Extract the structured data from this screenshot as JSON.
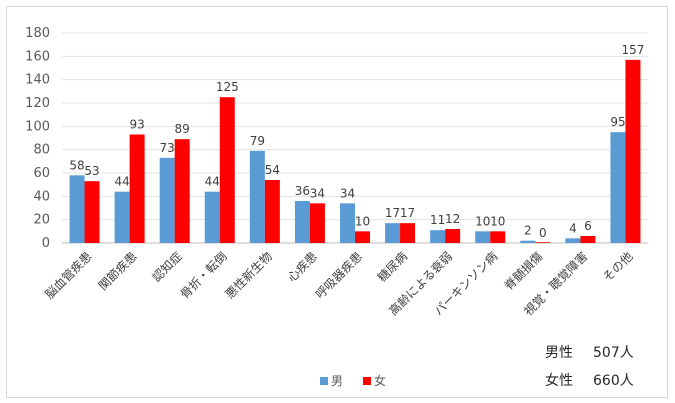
{
  "chart_data": {
    "type": "bar",
    "categories": [
      "脳血管疾患",
      "関節疾患",
      "認知症",
      "骨折・転倒",
      "悪性新生物",
      "心疾患",
      "呼吸器疾患",
      "糖尿病",
      "高齢による衰弱",
      "パーキンソン病",
      "脊髄損傷",
      "視覚・聴覚障害",
      "その他"
    ],
    "series": [
      {
        "name": "男",
        "values": [
          58,
          44,
          73,
          44,
          79,
          36,
          34,
          17,
          11,
          10,
          2,
          4,
          95
        ],
        "color": "#5b9bd5"
      },
      {
        "name": "女",
        "values": [
          53,
          93,
          89,
          125,
          54,
          34,
          10,
          17,
          12,
          10,
          0,
          6,
          157
        ],
        "color": "#ff0000"
      }
    ],
    "ylim": [
      0,
      180
    ],
    "yticks": [
      0,
      20,
      40,
      60,
      80,
      100,
      120,
      140,
      160,
      180
    ],
    "grid": true,
    "legend_position": "bottom"
  },
  "totals": [
    {
      "label": "男性",
      "value": "507人"
    },
    {
      "label": "女性",
      "value": "660人"
    }
  ]
}
